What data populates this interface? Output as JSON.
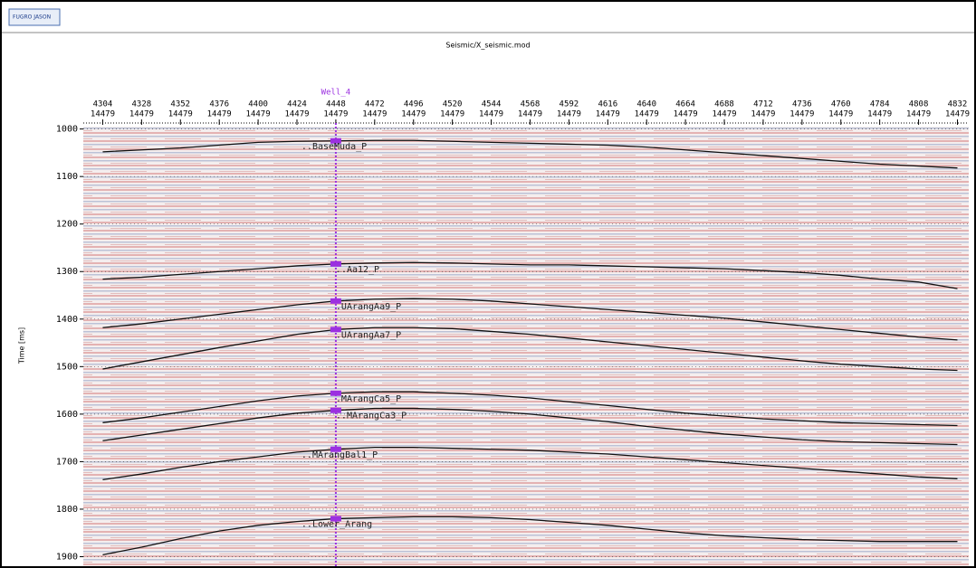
{
  "logo": "FUGRO JASON",
  "chart_data": {
    "type": "line",
    "title": "Seismic/X_seismic.mod",
    "y_label": "Time [ms]",
    "x": [
      4304,
      4328,
      4352,
      4376,
      4400,
      4424,
      4448,
      4472,
      4496,
      4520,
      4544,
      4568,
      4592,
      4616,
      4640,
      4664,
      4688,
      4712,
      4736,
      4760,
      4784,
      4808,
      4832
    ],
    "xticks": [
      4304,
      4328,
      4352,
      4376,
      4400,
      4424,
      4448,
      4472,
      4496,
      4520,
      4544,
      4568,
      4592,
      4616,
      4640,
      4664,
      4688,
      4712,
      4736,
      4760,
      4784,
      4808,
      4832
    ],
    "inline_labels": [
      "14479",
      "14479",
      "14479",
      "14479",
      "14479",
      "14479",
      "14479",
      "14479",
      "14479",
      "14479",
      "14479",
      "14479",
      "14479",
      "14479",
      "14479",
      "14479",
      "14479",
      "14479",
      "14479",
      "14479",
      "14479",
      "14479",
      "14479"
    ],
    "xlim": [
      4292,
      4839
    ],
    "ylim": [
      1920,
      995
    ],
    "yticks": [
      1000,
      1100,
      1200,
      1300,
      1400,
      1500,
      1600,
      1700,
      1800,
      1900
    ],
    "well": {
      "name": "Well_4",
      "x": 4448,
      "color": "#9b30e0"
    },
    "series": [
      {
        "name": "..BaseMuda_P",
        "color": "#111111",
        "values": [
          1048,
          1044,
          1040,
          1034,
          1028,
          1026,
          1025,
          1024,
          1024,
          1026,
          1028,
          1030,
          1032,
          1034,
          1038,
          1044,
          1050,
          1056,
          1062,
          1068,
          1074,
          1078,
          1082
        ]
      },
      {
        "name": "..Aa12_P",
        "color": "#111111",
        "values": [
          1316,
          1312,
          1306,
          1300,
          1294,
          1288,
          1284,
          1282,
          1281,
          1282,
          1284,
          1286,
          1286,
          1288,
          1290,
          1292,
          1294,
          1298,
          1302,
          1308,
          1316,
          1322,
          1336
        ]
      },
      {
        "name": ".UArangAa9_P",
        "color": "#111111",
        "values": [
          1418,
          1410,
          1400,
          1390,
          1380,
          1370,
          1362,
          1358,
          1357,
          1358,
          1362,
          1368,
          1374,
          1380,
          1386,
          1392,
          1398,
          1406,
          1414,
          1422,
          1430,
          1438,
          1444
        ]
      },
      {
        "name": ".UArangAa7_P",
        "color": "#111111",
        "values": [
          1505,
          1490,
          1475,
          1460,
          1446,
          1432,
          1422,
          1418,
          1418,
          1420,
          1426,
          1432,
          1440,
          1448,
          1456,
          1464,
          1472,
          1480,
          1488,
          1495,
          1500,
          1505,
          1508
        ]
      },
      {
        "name": ".MArangCa5_P",
        "color": "#111111",
        "values": [
          1618,
          1608,
          1596,
          1584,
          1572,
          1562,
          1556,
          1553,
          1553,
          1556,
          1560,
          1566,
          1574,
          1582,
          1590,
          1598,
          1604,
          1610,
          1614,
          1618,
          1620,
          1622,
          1624
        ]
      },
      {
        "name": "..MArangCa3_P",
        "color": "#111111",
        "values": [
          1656,
          1644,
          1632,
          1620,
          1608,
          1598,
          1592,
          1588,
          1588,
          1590,
          1594,
          1600,
          1608,
          1616,
          1626,
          1634,
          1642,
          1648,
          1654,
          1658,
          1660,
          1662,
          1664
        ]
      },
      {
        "name": "..MArangBal1_P",
        "color": "#111111",
        "values": [
          1738,
          1726,
          1712,
          1700,
          1690,
          1680,
          1674,
          1670,
          1670,
          1672,
          1674,
          1676,
          1680,
          1684,
          1690,
          1696,
          1702,
          1708,
          1714,
          1720,
          1726,
          1732,
          1736
        ]
      },
      {
        "name": "..Lower_Arang",
        "color": "#111111",
        "values": [
          1896,
          1880,
          1862,
          1846,
          1834,
          1826,
          1820,
          1818,
          1816,
          1816,
          1818,
          1822,
          1828,
          1834,
          1842,
          1850,
          1856,
          1860,
          1864,
          1866,
          1868,
          1868,
          1868
        ]
      }
    ]
  }
}
